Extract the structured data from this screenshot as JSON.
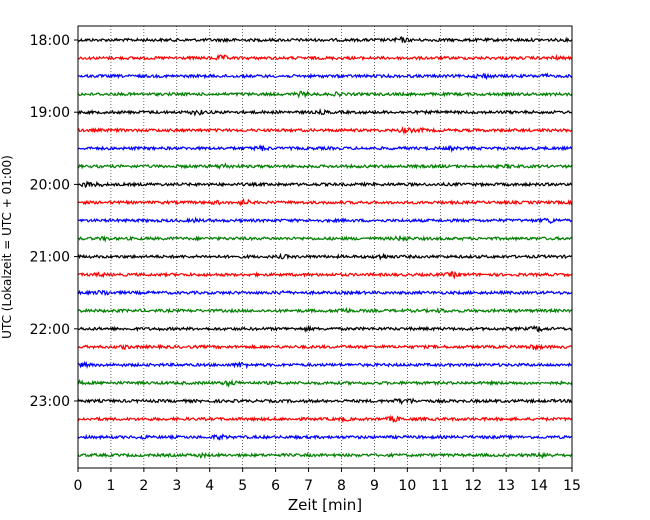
{
  "chart_data": {
    "type": "line",
    "title": "",
    "xlabel": "Zeit  [min]",
    "ylabel": "UTC (Lokalzeit = UTC + 01:00)",
    "xlim": [
      0,
      15
    ],
    "x_ticks": [
      0,
      1,
      2,
      3,
      4,
      5,
      6,
      7,
      8,
      9,
      10,
      11,
      12,
      13,
      14,
      15
    ],
    "x_tick_labels": [
      "0",
      "1",
      "2",
      "3",
      "4",
      "5",
      "6",
      "7",
      "8",
      "9",
      "10",
      "11",
      "12",
      "13",
      "14",
      "15"
    ],
    "grid": "vertical dotted lines at each minute",
    "y_tick_labels": [
      "18:00",
      "19:00",
      "20:00",
      "21:00",
      "22:00",
      "23:00"
    ],
    "color_cycle": [
      "#000000",
      "#ff0000",
      "#0000ff",
      "#008000"
    ],
    "trace_start_times": [
      "18:00",
      "18:15",
      "18:30",
      "18:45",
      "19:00",
      "19:15",
      "19:30",
      "19:45",
      "20:00",
      "20:15",
      "20:30",
      "20:45",
      "21:00",
      "21:15",
      "21:30",
      "21:45",
      "22:00",
      "22:15",
      "22:30",
      "22:45",
      "23:00",
      "23:15",
      "23:30",
      "23:45"
    ],
    "trace_minutes": 15
  }
}
